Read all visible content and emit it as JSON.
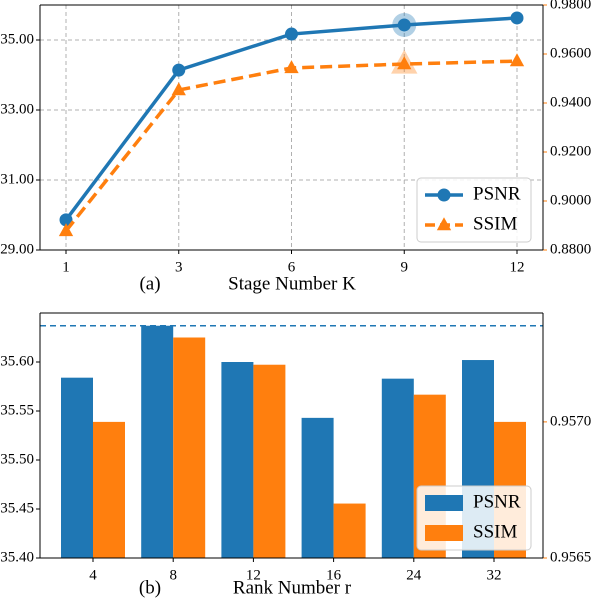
{
  "chart_data": [
    {
      "type": "line",
      "categories": [
        "1",
        "3",
        "6",
        "9",
        "12"
      ],
      "xlabel": "Stage Number K",
      "panel_label": "(a)",
      "series": [
        {
          "name": "PSNR",
          "color": "#1f77b4",
          "marker": "circle",
          "linestyle": "solid",
          "values": [
            29.86,
            34.14,
            35.17,
            35.43,
            35.63
          ]
        },
        {
          "name": "SSIM",
          "color": "#ff7f0e",
          "marker": "triangle",
          "linestyle": "dashed",
          "axis": "y2",
          "values": [
            0.8878,
            0.9453,
            0.9543,
            0.9559,
            0.9571
          ]
        }
      ],
      "highlight_index": 3,
      "ylim": [
        29,
        36
      ],
      "yticks": [
        {
          "value": 29,
          "label": "29.00"
        },
        {
          "value": 31,
          "label": "31.00"
        },
        {
          "value": 33,
          "label": "33.00"
        },
        {
          "value": 35,
          "label": "35.00"
        }
      ],
      "y2lim": [
        0.88,
        0.98
      ],
      "y2ticks": [
        {
          "value": 0.88,
          "label": "0.8800"
        },
        {
          "value": 0.9,
          "label": "0.9000"
        },
        {
          "value": 0.92,
          "label": "0.9200"
        },
        {
          "value": 0.94,
          "label": "0.9400"
        },
        {
          "value": 0.96,
          "label": "0.9600"
        },
        {
          "value": 0.98,
          "label": "0.9800"
        }
      ],
      "grid": true,
      "legend": "lower right"
    },
    {
      "type": "bar",
      "categories": [
        "4",
        "8",
        "12",
        "16",
        "24",
        "32"
      ],
      "xlabel": "Rank Number r",
      "panel_label": "(b)",
      "series": [
        {
          "name": "PSNR",
          "color": "#1f77b4",
          "values": [
            35.584,
            35.637,
            35.6,
            35.543,
            35.583,
            35.602
          ]
        },
        {
          "name": "SSIM",
          "color": "#ff7f0e",
          "axis": "y2",
          "values": [
            0.957,
            0.95731,
            0.95721,
            0.9567,
            0.9571,
            0.957
          ]
        }
      ],
      "reference_line": 35.637,
      "ylim": [
        35.4,
        35.65
      ],
      "yticks": [
        {
          "value": 35.4,
          "label": "35.40"
        },
        {
          "value": 35.45,
          "label": "35.45"
        },
        {
          "value": 35.5,
          "label": "35.50"
        },
        {
          "value": 35.55,
          "label": "35.55"
        },
        {
          "value": 35.6,
          "label": "35.60"
        }
      ],
      "y2lim": [
        0.9565,
        0.9574
      ],
      "y2ticks": [
        {
          "value": 0.9565,
          "label": "0.9565"
        },
        {
          "value": 0.957,
          "label": "0.9570"
        }
      ],
      "grid": false,
      "legend": "lower right"
    }
  ]
}
